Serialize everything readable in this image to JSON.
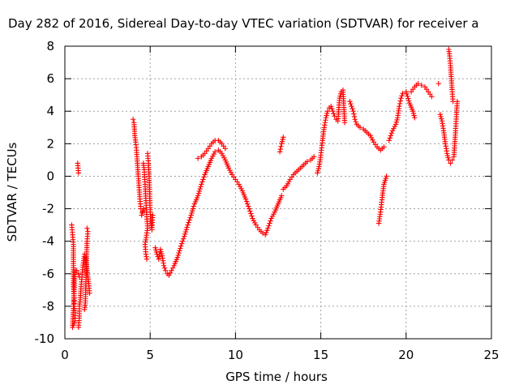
{
  "chart_data": {
    "type": "scatter",
    "title": "Day 282 of 2016, Sidereal Day-to-day VTEC variation (SDTVAR) for receiver a",
    "xlabel": "GPS time / hours",
    "ylabel": "SDTVAR / TECUs",
    "xlim": [
      0,
      25
    ],
    "ylim": [
      -10,
      8
    ],
    "xticks": [
      0,
      5,
      10,
      15,
      20,
      25
    ],
    "yticks": [
      -10,
      -8,
      -6,
      -4,
      -2,
      0,
      2,
      4,
      6,
      8
    ],
    "grid": true,
    "marker": "+",
    "color": "#ff0000",
    "series": [
      {
        "segments": [
          [
            [
              0.4,
              -3.0
            ],
            [
              0.45,
              -3.6
            ],
            [
              0.5,
              -4.2
            ],
            [
              0.5,
              -6.8
            ],
            [
              0.55,
              -7.5
            ],
            [
              0.55,
              -8.0
            ],
            [
              0.6,
              -8.4
            ],
            [
              0.6,
              -8.9
            ],
            [
              0.45,
              -9.3
            ],
            [
              0.6,
              -5.8
            ],
            [
              0.7,
              -5.8
            ],
            [
              0.8,
              -6.0
            ],
            [
              0.85,
              -6.2
            ]
          ],
          [
            [
              0.75,
              0.8
            ],
            [
              0.8,
              0.2
            ]
          ],
          [
            [
              0.8,
              -9.3
            ],
            [
              0.85,
              -8.6
            ],
            [
              0.85,
              -8.0
            ],
            [
              0.9,
              -7.6
            ],
            [
              0.95,
              -6.8
            ],
            [
              1.0,
              -6.2
            ],
            [
              1.05,
              -5.6
            ],
            [
              1.1,
              -5.2
            ],
            [
              1.15,
              -4.8
            ],
            [
              1.2,
              -5.0
            ],
            [
              1.25,
              -5.4
            ],
            [
              1.3,
              -5.8
            ],
            [
              1.4,
              -6.6
            ],
            [
              1.45,
              -7.2
            ]
          ],
          [
            [
              1.15,
              -8.2
            ],
            [
              1.2,
              -7.8
            ],
            [
              1.3,
              -4.0
            ],
            [
              1.35,
              -3.4
            ],
            [
              1.3,
              -3.2
            ]
          ],
          [
            [
              4.0,
              3.5
            ],
            [
              4.05,
              3.3
            ],
            [
              4.1,
              2.5
            ],
            [
              4.15,
              2.1
            ],
            [
              4.2,
              1.6
            ],
            [
              4.25,
              0.8
            ],
            [
              4.3,
              0.0
            ],
            [
              4.35,
              -0.7
            ],
            [
              4.4,
              -1.4
            ],
            [
              4.45,
              -2.0
            ],
            [
              4.55,
              -2.2
            ],
            [
              4.6,
              -2.0
            ],
            [
              4.5,
              -2.4
            ]
          ],
          [
            [
              4.6,
              0.8
            ],
            [
              4.65,
              0.4
            ],
            [
              4.7,
              -0.5
            ],
            [
              4.75,
              -1.5
            ],
            [
              4.8,
              -2.5
            ],
            [
              4.85,
              -3.2
            ],
            [
              4.7,
              -4.2
            ],
            [
              4.75,
              -4.8
            ],
            [
              4.8,
              -5.1
            ]
          ],
          [
            [
              4.85,
              1.4
            ],
            [
              4.9,
              0.8
            ],
            [
              4.95,
              -0.4
            ],
            [
              5.0,
              -2.2
            ],
            [
              5.05,
              -2.9
            ],
            [
              5.1,
              -3.3
            ],
            [
              5.15,
              -2.4
            ]
          ],
          [
            [
              5.3,
              -4.4
            ],
            [
              5.4,
              -4.8
            ],
            [
              5.5,
              -5.1
            ],
            [
              5.6,
              -4.5
            ],
            [
              5.7,
              -4.9
            ],
            [
              5.8,
              -5.5
            ],
            [
              5.9,
              -5.8
            ],
            [
              6.0,
              -6.0
            ],
            [
              6.1,
              -6.1
            ],
            [
              6.25,
              -5.8
            ],
            [
              6.4,
              -5.5
            ],
            [
              6.6,
              -5.0
            ],
            [
              6.8,
              -4.3
            ],
            [
              7.0,
              -3.7
            ],
            [
              7.2,
              -3.0
            ],
            [
              7.4,
              -2.4
            ],
            [
              7.5,
              -2.0
            ],
            [
              7.6,
              -1.7
            ],
            [
              7.8,
              -1.2
            ],
            [
              8.0,
              -0.5
            ],
            [
              8.2,
              0.1
            ],
            [
              8.4,
              0.6
            ],
            [
              8.6,
              1.1
            ],
            [
              8.8,
              1.5
            ],
            [
              9.0,
              1.6
            ],
            [
              9.2,
              1.4
            ],
            [
              9.4,
              1.0
            ],
            [
              9.6,
              0.5
            ],
            [
              9.8,
              0.1
            ],
            [
              10.0,
              -0.2
            ],
            [
              10.2,
              -0.5
            ],
            [
              10.4,
              -0.9
            ],
            [
              10.6,
              -1.4
            ],
            [
              10.8,
              -2.0
            ],
            [
              11.0,
              -2.6
            ],
            [
              11.2,
              -3.0
            ],
            [
              11.4,
              -3.3
            ],
            [
              11.6,
              -3.5
            ],
            [
              11.75,
              -3.6
            ],
            [
              11.9,
              -3.2
            ],
            [
              12.1,
              -2.6
            ],
            [
              12.3,
              -2.2
            ],
            [
              12.5,
              -1.7
            ],
            [
              12.7,
              -1.2
            ]
          ],
          [
            [
              7.8,
              1.1
            ],
            [
              8.0,
              1.2
            ],
            [
              8.2,
              1.4
            ],
            [
              8.4,
              1.7
            ],
            [
              8.6,
              2.0
            ],
            [
              8.8,
              2.2
            ],
            [
              9.0,
              2.2
            ],
            [
              9.2,
              2.0
            ],
            [
              9.4,
              1.7
            ]
          ],
          [
            [
              12.6,
              1.5
            ],
            [
              12.7,
              2.0
            ],
            [
              12.8,
              2.4
            ]
          ],
          [
            [
              12.8,
              -0.8
            ],
            [
              13.0,
              -0.6
            ],
            [
              13.2,
              -0.2
            ],
            [
              13.4,
              0.1
            ],
            [
              13.6,
              0.3
            ],
            [
              13.8,
              0.5
            ],
            [
              14.0,
              0.7
            ],
            [
              14.2,
              0.9
            ],
            [
              14.4,
              1.0
            ],
            [
              14.6,
              1.2
            ]
          ],
          [
            [
              14.8,
              0.2
            ],
            [
              14.9,
              0.6
            ],
            [
              15.0,
              1.3
            ],
            [
              15.1,
              2.2
            ],
            [
              15.2,
              3.0
            ],
            [
              15.3,
              3.6
            ],
            [
              15.4,
              4.0
            ],
            [
              15.5,
              4.2
            ],
            [
              15.6,
              4.3
            ],
            [
              15.7,
              4.0
            ],
            [
              15.8,
              3.7
            ],
            [
              15.9,
              3.5
            ],
            [
              16.0,
              3.4
            ],
            [
              16.1,
              4.8
            ],
            [
              16.2,
              5.2
            ],
            [
              16.3,
              5.3
            ],
            [
              16.4,
              3.3
            ]
          ],
          [
            [
              16.7,
              4.6
            ],
            [
              16.8,
              4.3
            ],
            [
              16.9,
              4.0
            ],
            [
              17.0,
              3.5
            ],
            [
              17.1,
              3.2
            ],
            [
              17.3,
              3.0
            ],
            [
              17.5,
              2.9
            ],
            [
              17.7,
              2.7
            ],
            [
              17.9,
              2.5
            ],
            [
              18.1,
              2.1
            ],
            [
              18.3,
              1.8
            ],
            [
              18.5,
              1.6
            ],
            [
              18.7,
              1.8
            ]
          ],
          [
            [
              18.4,
              -2.9
            ],
            [
              18.5,
              -2.2
            ],
            [
              18.6,
              -1.3
            ],
            [
              18.7,
              -0.5
            ],
            [
              18.85,
              0.0
            ]
          ],
          [
            [
              19.0,
              2.2
            ],
            [
              19.2,
              2.8
            ],
            [
              19.4,
              3.2
            ],
            [
              19.5,
              3.6
            ],
            [
              19.6,
              4.3
            ],
            [
              19.7,
              4.8
            ],
            [
              19.8,
              5.1
            ],
            [
              20.0,
              5.2
            ],
            [
              20.2,
              4.5
            ],
            [
              20.4,
              4.0
            ],
            [
              20.5,
              3.6
            ]
          ],
          [
            [
              20.3,
              5.2
            ],
            [
              20.5,
              5.5
            ],
            [
              20.7,
              5.7
            ],
            [
              20.9,
              5.6
            ],
            [
              21.1,
              5.5
            ],
            [
              21.3,
              5.2
            ],
            [
              21.5,
              4.9
            ]
          ],
          [
            [
              21.9,
              5.7
            ]
          ],
          [
            [
              22.0,
              3.8
            ],
            [
              22.1,
              3.4
            ],
            [
              22.2,
              2.8
            ],
            [
              22.3,
              2.0
            ],
            [
              22.4,
              1.4
            ],
            [
              22.5,
              1.0
            ],
            [
              22.6,
              0.8
            ],
            [
              22.7,
              1.0
            ]
          ],
          [
            [
              22.5,
              7.8
            ],
            [
              22.55,
              7.4
            ],
            [
              22.6,
              6.8
            ],
            [
              22.65,
              6.0
            ],
            [
              22.7,
              5.2
            ],
            [
              22.75,
              4.6
            ]
          ],
          [
            [
              22.8,
              1.2
            ],
            [
              22.85,
              2.0
            ],
            [
              22.9,
              2.8
            ],
            [
              22.95,
              3.8
            ],
            [
              23.0,
              4.6
            ]
          ]
        ]
      }
    ]
  }
}
